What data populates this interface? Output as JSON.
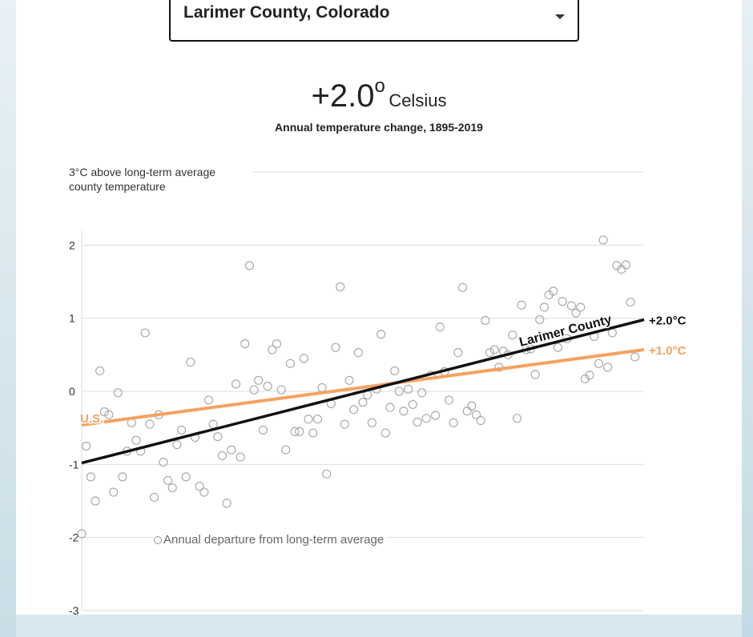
{
  "location_select": {
    "selected": "Larimer County, Colorado"
  },
  "headline": {
    "value": "+2.0",
    "degree_symbol": "o",
    "unit": "Celsius"
  },
  "subtitle": "Annual temperature change, 1895-2019",
  "legend_label": "Annual departure from long-term average",
  "colors": {
    "county_line": "#111111",
    "us_line": "#f4a261",
    "points": "#aaaaaa",
    "grid": "#dddddd"
  },
  "chart_data": {
    "type": "scatter",
    "title": "Annual temperature change, 1895-2019",
    "xlabel": "",
    "ylabel": "3°C above long-term average county temperature",
    "y_axis_label_lines": [
      "3°C above long-term average",
      "county temperature"
    ],
    "xlim": [
      1895,
      2019
    ],
    "ylim": [
      -3,
      3
    ],
    "y_ticks": [
      2,
      1,
      0,
      -1,
      -2,
      -3
    ],
    "y_tick_labels": [
      "2",
      "1",
      "0",
      "-1",
      "-2",
      "-3"
    ],
    "grid": true,
    "points": [
      [
        1895,
        -1.95
      ],
      [
        1896,
        -0.75
      ],
      [
        1897,
        -1.17
      ],
      [
        1898,
        -1.5
      ],
      [
        1899,
        0.28
      ],
      [
        1900,
        -0.28
      ],
      [
        1901,
        -0.32
      ],
      [
        1902,
        -1.38
      ],
      [
        1903,
        -0.02
      ],
      [
        1904,
        -1.17
      ],
      [
        1905,
        -0.82
      ],
      [
        1906,
        -0.43
      ],
      [
        1907,
        -0.67
      ],
      [
        1908,
        -0.82
      ],
      [
        1909,
        0.8
      ],
      [
        1910,
        -0.45
      ],
      [
        1911,
        -1.45
      ],
      [
        1912,
        -0.32
      ],
      [
        1913,
        -0.97
      ],
      [
        1914,
        -1.22
      ],
      [
        1915,
        -1.32
      ],
      [
        1916,
        -0.73
      ],
      [
        1917,
        -0.53
      ],
      [
        1918,
        -1.17
      ],
      [
        1919,
        0.4
      ],
      [
        1920,
        -0.63
      ],
      [
        1921,
        -1.3
      ],
      [
        1922,
        -1.38
      ],
      [
        1923,
        -0.12
      ],
      [
        1924,
        -0.45
      ],
      [
        1925,
        -0.62
      ],
      [
        1926,
        -0.88
      ],
      [
        1927,
        -1.53
      ],
      [
        1928,
        -0.8
      ],
      [
        1929,
        0.1
      ],
      [
        1930,
        -0.9
      ],
      [
        1931,
        0.65
      ],
      [
        1932,
        1.72
      ],
      [
        1933,
        0.02
      ],
      [
        1934,
        0.15
      ],
      [
        1935,
        -0.53
      ],
      [
        1936,
        0.07
      ],
      [
        1937,
        0.57
      ],
      [
        1938,
        0.65
      ],
      [
        1939,
        0.02
      ],
      [
        1940,
        -0.8
      ],
      [
        1941,
        0.38
      ],
      [
        1942,
        -0.55
      ],
      [
        1943,
        -0.55
      ],
      [
        1944,
        0.45
      ],
      [
        1945,
        -0.38
      ],
      [
        1946,
        -0.57
      ],
      [
        1947,
        -0.38
      ],
      [
        1948,
        0.05
      ],
      [
        1949,
        -1.13
      ],
      [
        1950,
        -0.17
      ],
      [
        1951,
        0.6
      ],
      [
        1952,
        1.43
      ],
      [
        1953,
        -0.45
      ],
      [
        1954,
        0.15
      ],
      [
        1955,
        -0.25
      ],
      [
        1956,
        0.53
      ],
      [
        1957,
        -0.15
      ],
      [
        1958,
        -0.05
      ],
      [
        1959,
        -0.43
      ],
      [
        1960,
        0.03
      ],
      [
        1961,
        0.78
      ],
      [
        1962,
        -0.57
      ],
      [
        1963,
        -0.22
      ],
      [
        1964,
        0.28
      ],
      [
        1965,
        0.0
      ],
      [
        1966,
        -0.27
      ],
      [
        1967,
        0.03
      ],
      [
        1968,
        -0.18
      ],
      [
        1969,
        -0.42
      ],
      [
        1970,
        -0.02
      ],
      [
        1971,
        -0.37
      ],
      [
        1972,
        0.22
      ],
      [
        1973,
        -0.33
      ],
      [
        1974,
        0.88
      ],
      [
        1975,
        0.27
      ],
      [
        1976,
        -0.12
      ],
      [
        1977,
        -0.43
      ],
      [
        1978,
        0.53
      ],
      [
        1979,
        1.42
      ],
      [
        1980,
        -0.27
      ],
      [
        1981,
        -0.2
      ],
      [
        1982,
        -0.32
      ],
      [
        1983,
        -0.4
      ],
      [
        1984,
        0.97
      ],
      [
        1985,
        0.53
      ],
      [
        1986,
        0.57
      ],
      [
        1987,
        0.33
      ],
      [
        1988,
        0.55
      ],
      [
        1989,
        0.5
      ],
      [
        1990,
        0.77
      ],
      [
        1991,
        -0.37
      ],
      [
        1992,
        1.18
      ],
      [
        1993,
        0.57
      ],
      [
        1994,
        0.58
      ],
      [
        1995,
        0.23
      ],
      [
        1996,
        0.98
      ],
      [
        1997,
        1.15
      ],
      [
        1998,
        1.32
      ],
      [
        1999,
        1.37
      ],
      [
        2000,
        0.6
      ],
      [
        2001,
        1.23
      ],
      [
        2002,
        0.72
      ],
      [
        2003,
        1.17
      ],
      [
        2004,
        1.07
      ],
      [
        2005,
        1.15
      ],
      [
        2006,
        0.17
      ],
      [
        2007,
        0.22
      ],
      [
        2008,
        0.75
      ],
      [
        2009,
        0.38
      ],
      [
        2010,
        2.07
      ],
      [
        2011,
        0.33
      ],
      [
        2012,
        0.8
      ],
      [
        2013,
        1.72
      ],
      [
        2014,
        1.67
      ],
      [
        2015,
        1.73
      ],
      [
        2016,
        1.22
      ],
      [
        2017,
        0.47
      ]
    ],
    "series": [
      {
        "name": "Larimer County",
        "start": [
          1895,
          -0.98
        ],
        "end": [
          2019,
          0.98
        ],
        "end_label": "+2.0°C"
      },
      {
        "name": "U.S.",
        "start": [
          1895,
          -0.46
        ],
        "end": [
          2019,
          0.57
        ],
        "end_label": "+1.0°C"
      }
    ],
    "legend": [
      "Annual departure from long-term average"
    ]
  }
}
